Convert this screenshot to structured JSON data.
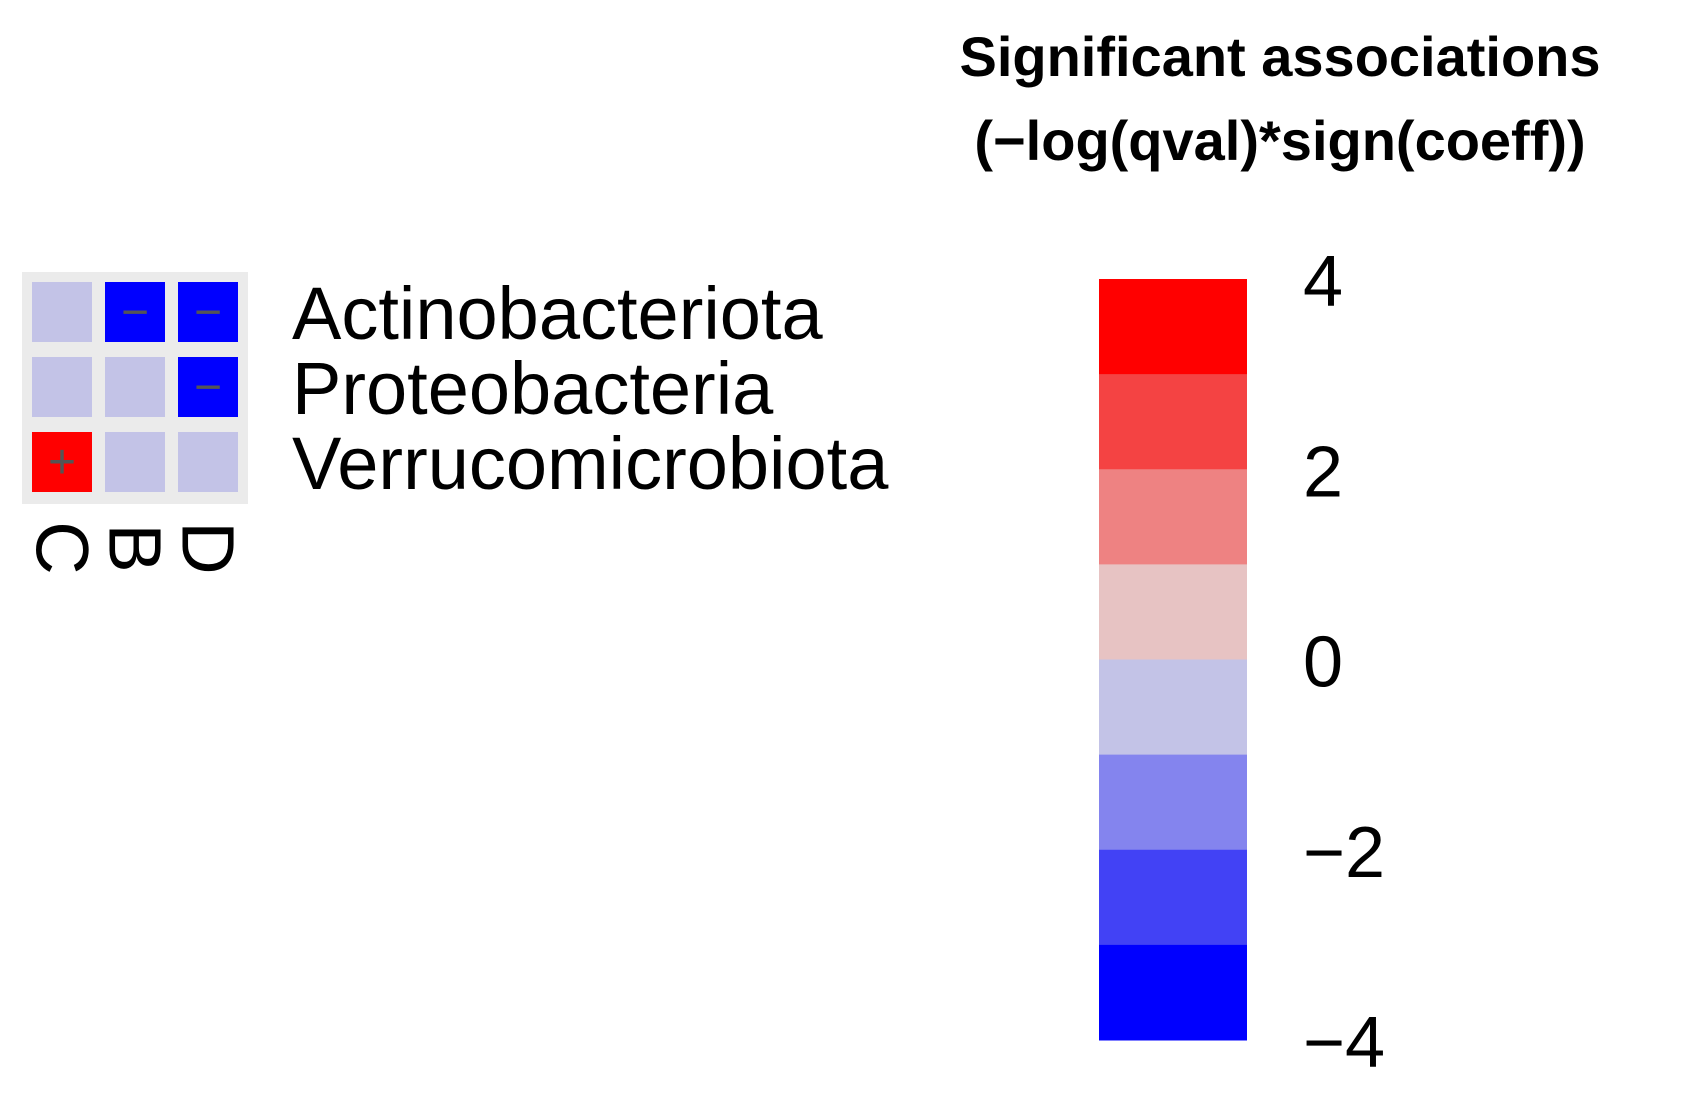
{
  "chart_data": {
    "type": "heatmap",
    "title": "Significant associations",
    "subtitle": "(−log(qval)*sign(coeff))",
    "rows": [
      "Actinobacteriota",
      "Proteobacteria",
      "Verrucomicrobiota"
    ],
    "columns": [
      "C",
      "B",
      "D"
    ],
    "values": [
      [
        0,
        -4,
        -4
      ],
      [
        0,
        0,
        -4
      ],
      [
        4,
        0,
        0
      ]
    ],
    "signs": [
      [
        "",
        "−",
        "−"
      ],
      [
        "",
        "",
        "−"
      ],
      [
        "+",
        "",
        ""
      ]
    ],
    "color_scale": {
      "min": -4,
      "max": 4,
      "bins": [
        {
          "from": 3,
          "to": 4,
          "color": "#ff0000"
        },
        {
          "from": 2,
          "to": 3,
          "color": "#f44343"
        },
        {
          "from": 1,
          "to": 2,
          "color": "#ee8282"
        },
        {
          "from": 0,
          "to": 1,
          "color": "#e7c3c3"
        },
        {
          "from": -1,
          "to": 0,
          "color": "#c3c3e7"
        },
        {
          "from": -2,
          "to": -1,
          "color": "#8484ee"
        },
        {
          "from": -3,
          "to": -2,
          "color": "#4242f5"
        },
        {
          "from": -4,
          "to": -3,
          "color": "#0000ff"
        }
      ],
      "ticks": [
        4,
        2,
        0,
        -2,
        -4
      ],
      "tick_labels": [
        "4",
        "2",
        "0",
        "−2",
        "−4"
      ]
    },
    "panel_background": "#ebebeb"
  }
}
